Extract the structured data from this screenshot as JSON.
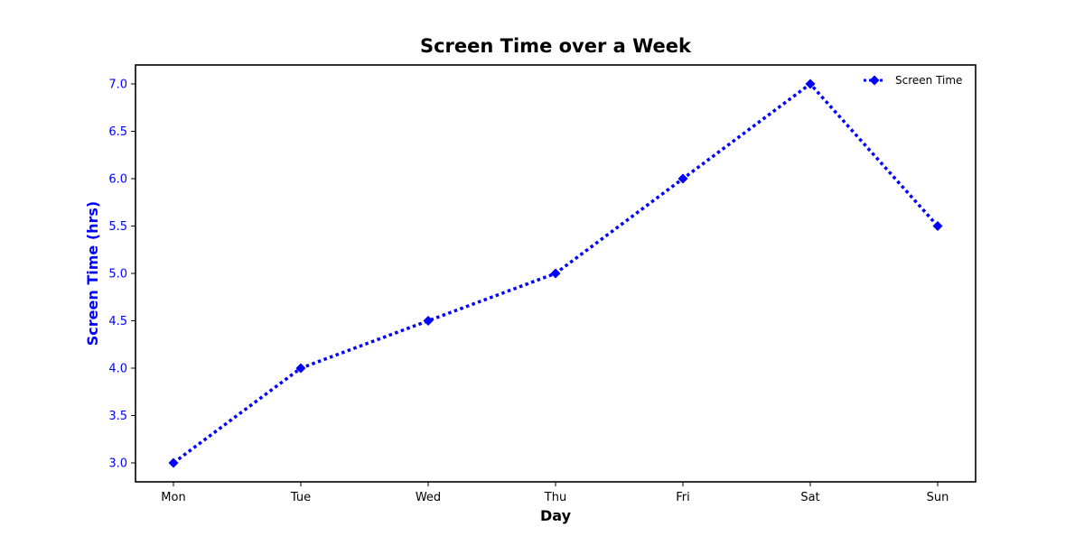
{
  "chart_data": {
    "type": "line",
    "title": "Screen Time over a Week",
    "xlabel": "Day",
    "ylabel": "Screen Time (hrs)",
    "categories": [
      "Mon",
      "Tue",
      "Wed",
      "Thu",
      "Fri",
      "Sat",
      "Sun"
    ],
    "series": [
      {
        "name": "Screen Time",
        "values": [
          3.0,
          4.0,
          4.5,
          5.0,
          6.0,
          7.0,
          5.5
        ],
        "color": "#0000ff",
        "line_style": "dotted",
        "marker": "diamond"
      }
    ],
    "ylim": [
      2.8,
      7.2
    ],
    "yticks": [
      3.0,
      3.5,
      4.0,
      4.5,
      5.0,
      5.5,
      6.0,
      6.5,
      7.0
    ],
    "ytick_labels": [
      "3.0",
      "3.5",
      "4.0",
      "4.5",
      "5.0",
      "5.5",
      "6.0",
      "6.5",
      "7.0"
    ],
    "grid": false,
    "legend_position": "top-right",
    "ylabel_color": "#0000ff",
    "ytick_color": "#0000ff",
    "xtick_color": "#000000"
  }
}
